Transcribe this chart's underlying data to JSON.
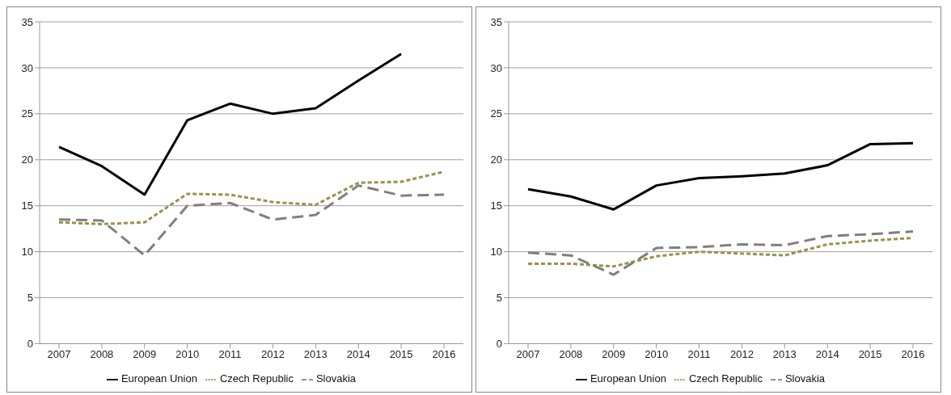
{
  "chart_data": [
    {
      "type": "line",
      "categories": [
        "2007",
        "2008",
        "2009",
        "2010",
        "2011",
        "2012",
        "2013",
        "2014",
        "2015",
        "2016"
      ],
      "ylim": [
        0,
        35
      ],
      "yticks": [
        0,
        5,
        10,
        15,
        20,
        25,
        30,
        35
      ],
      "grid": "y",
      "legend": "bottom",
      "series": [
        {
          "name": "European Union",
          "color": "#000000",
          "line_style": "solid",
          "values": [
            21.4,
            19.3,
            16.2,
            24.3,
            26.1,
            25.0,
            25.6,
            28.6,
            31.5,
            null
          ]
        },
        {
          "name": "Czech Republic",
          "color": "#9a9050",
          "line_style": "dotted",
          "values": [
            13.2,
            13.0,
            13.2,
            16.3,
            16.2,
            15.4,
            15.1,
            17.5,
            17.6,
            18.7
          ]
        },
        {
          "name": "Slovakia",
          "color": "#7f7f7f",
          "line_style": "dashed",
          "values": [
            13.5,
            13.4,
            9.6,
            15.0,
            15.3,
            13.5,
            14.0,
            17.2,
            16.1,
            16.2
          ]
        }
      ]
    },
    {
      "type": "line",
      "categories": [
        "2007",
        "2008",
        "2009",
        "2010",
        "2011",
        "2012",
        "2013",
        "2014",
        "2015",
        "2016"
      ],
      "ylim": [
        0,
        35
      ],
      "yticks": [
        0,
        5,
        10,
        15,
        20,
        25,
        30,
        35
      ],
      "grid": "y",
      "legend": "bottom",
      "series": [
        {
          "name": "European Union",
          "color": "#000000",
          "line_style": "solid",
          "values": [
            16.8,
            16.0,
            14.6,
            17.2,
            18.0,
            18.2,
            18.5,
            19.4,
            21.7,
            21.8
          ]
        },
        {
          "name": "Czech Republic",
          "color": "#9a9050",
          "line_style": "dotted",
          "values": [
            8.7,
            8.7,
            8.4,
            9.5,
            10.0,
            9.8,
            9.6,
            10.8,
            11.2,
            11.5
          ]
        },
        {
          "name": "Slovakia",
          "color": "#7f7f7f",
          "line_style": "dashed",
          "values": [
            9.9,
            9.6,
            7.5,
            10.4,
            10.5,
            10.8,
            10.7,
            11.7,
            11.9,
            12.2
          ]
        }
      ]
    }
  ]
}
